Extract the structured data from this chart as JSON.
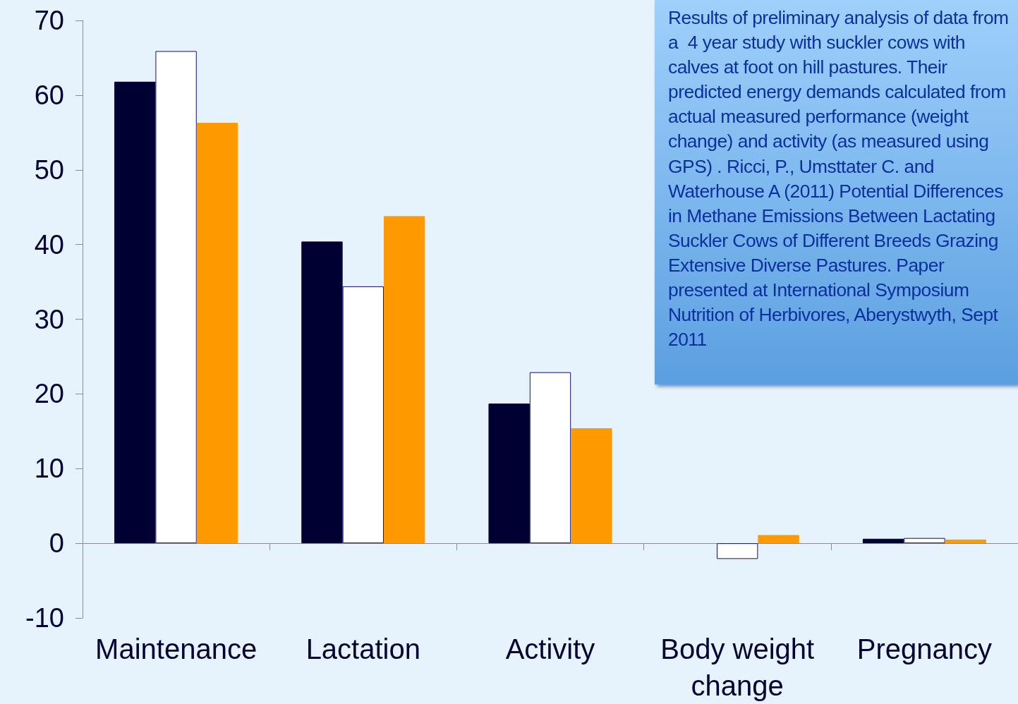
{
  "chart_data": {
    "type": "bar",
    "categories": [
      "Maintenance",
      "Lactation",
      "Activity",
      "Body weight\nchange",
      "Pregnancy"
    ],
    "series": [
      {
        "color": "#000033",
        "values": [
          61.8,
          40.4,
          18.7,
          null,
          0.6
        ]
      },
      {
        "color": "#ffffff",
        "values": [
          65.9,
          34.4,
          22.9,
          -2.1,
          0.7
        ]
      },
      {
        "color": "#ff9900",
        "values": [
          56.3,
          43.8,
          15.4,
          1.1,
          0.5
        ]
      }
    ],
    "ylim": [
      -10,
      70
    ],
    "yticks": [
      -10,
      0,
      10,
      20,
      30,
      40,
      50,
      60,
      70
    ],
    "annotations": [
      "Results of preliminary analysis of data from a  4 year study with suckler cows with calves at foot on hill pastures. Their predicted energy demands calculated from actual measured performance (weight change) and activity (as measured using GPS) . Ricci, P., Umsttater C. and Waterhouse A (2011) Potential Differences in Methane Emissions Between Lactating Suckler Cows of Different Breeds Grazing Extensive Diverse Pastures. Paper presented at International Symposium Nutrition of Herbivores, Aberystwyth, Sept 2011"
    ]
  }
}
